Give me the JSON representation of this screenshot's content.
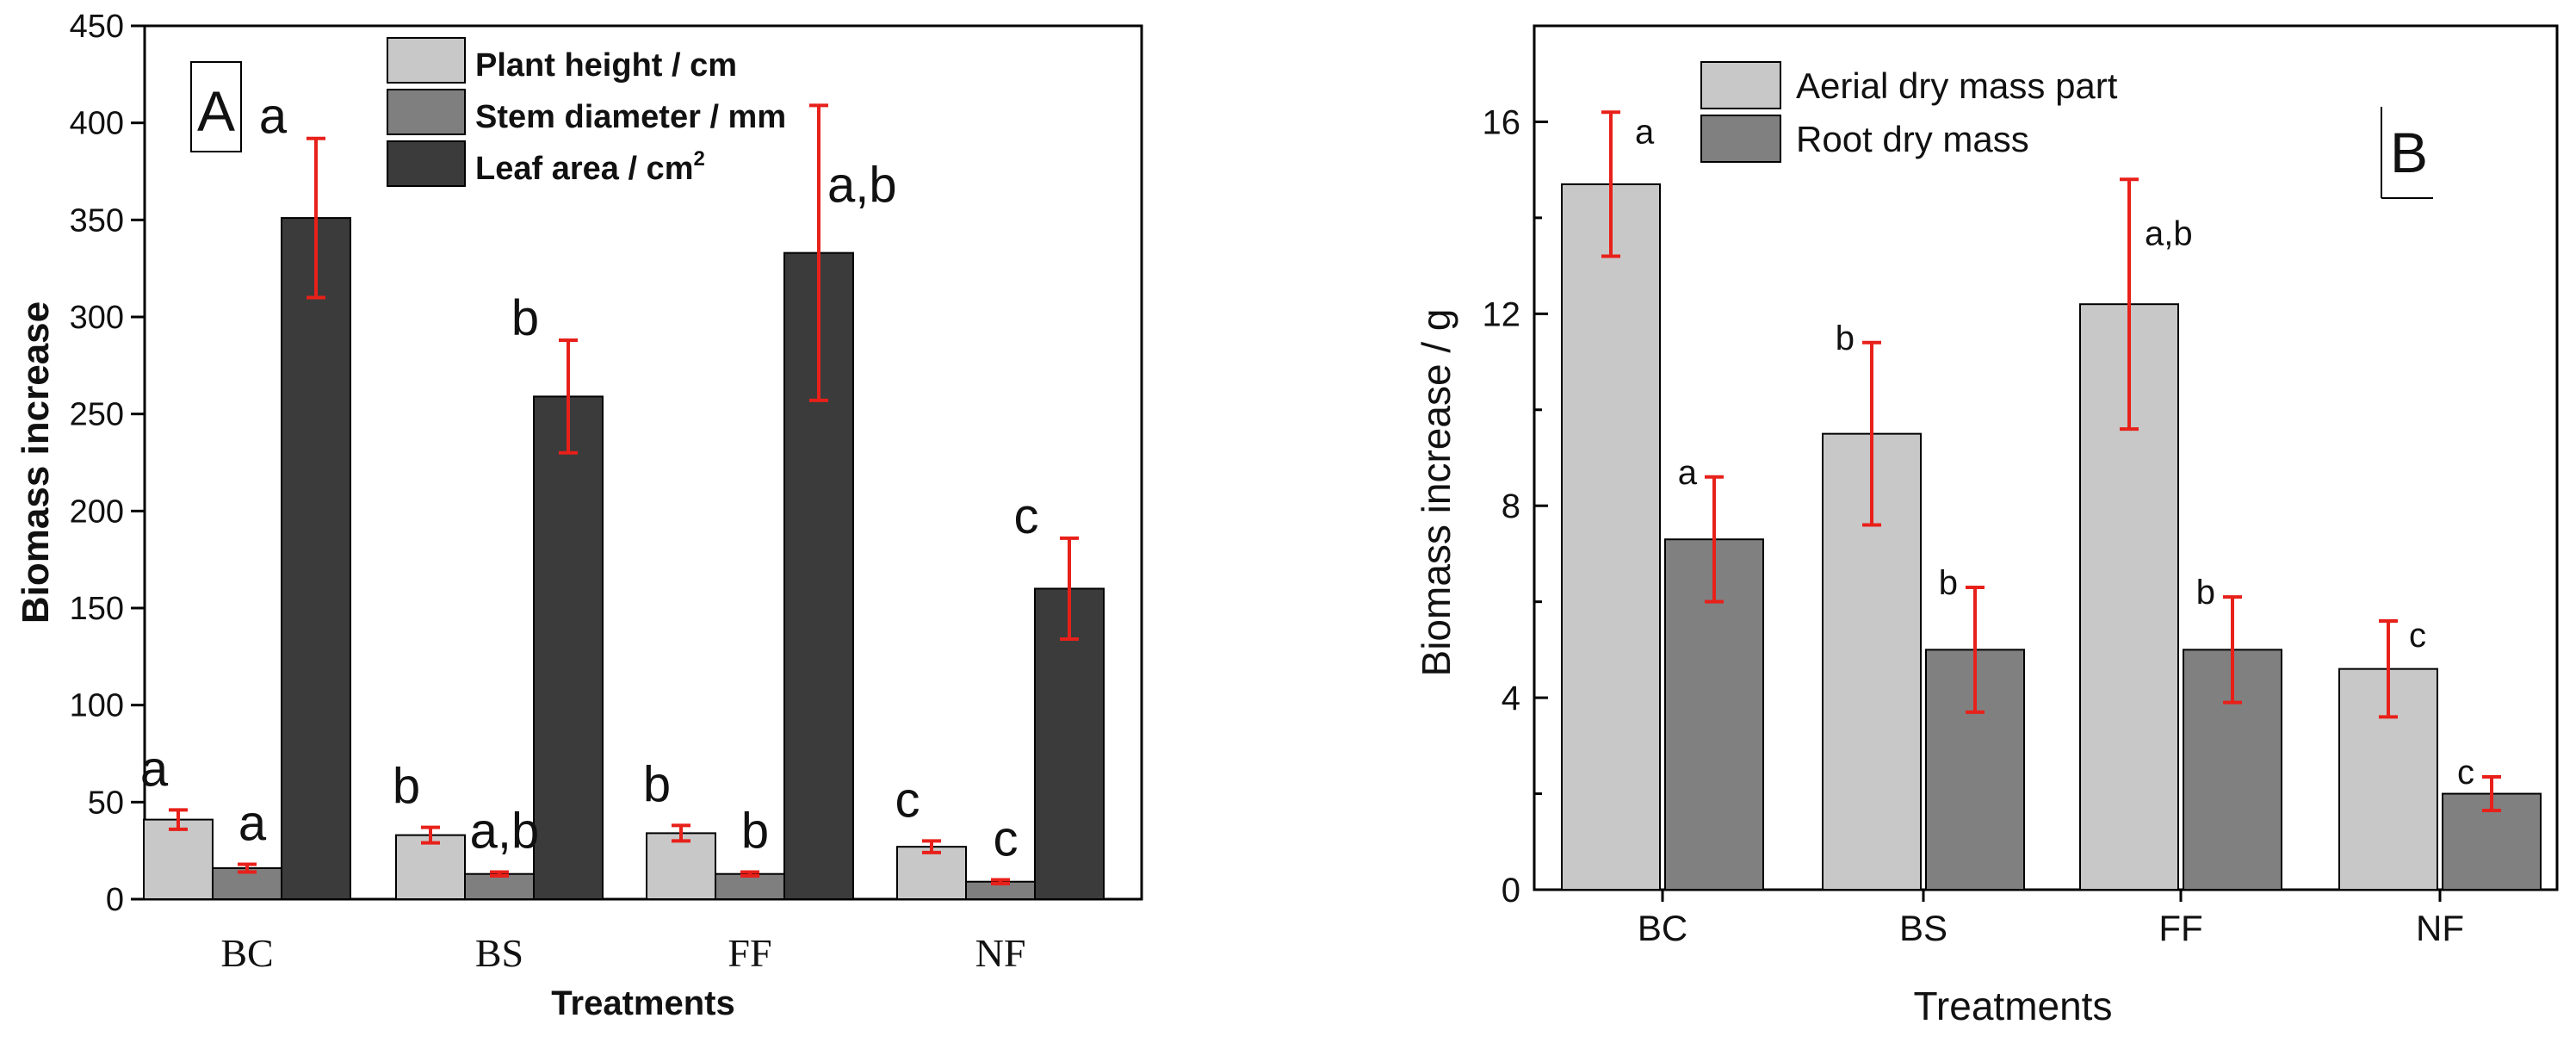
{
  "colors": {
    "background": "#ffffff",
    "axis": "#000000",
    "error_bar": "#e8201a",
    "light_gray": "#c8c8c8",
    "mid_gray": "#808080",
    "dark_gray": "#3c3c3c"
  },
  "chart_data": [
    {
      "type": "bar",
      "panel_label": "A",
      "title": "",
      "xlabel": "Treatments",
      "ylabel": "Biomass increase",
      "ylim": [
        0,
        450
      ],
      "yticks": [
        "0",
        "50",
        "100",
        "150",
        "200",
        "250",
        "300",
        "350",
        "400",
        "450"
      ],
      "categories": [
        "BC",
        "BS",
        "FF",
        "NF"
      ],
      "legend_position": "top-center",
      "series": [
        {
          "name": "Plant height / cm",
          "legend_label": "Plant height / cm",
          "color": "#c8c8c8",
          "values": [
            41,
            33,
            34,
            27
          ],
          "errors": [
            5,
            4,
            4,
            3
          ],
          "letters": [
            "a",
            "b",
            "b",
            "c"
          ]
        },
        {
          "name": "Stem diameter / mm",
          "legend_label": "Stem diameter / mm",
          "color": "#7f7f7f",
          "values": [
            16,
            13,
            13,
            9
          ],
          "errors": [
            2,
            1,
            1,
            1
          ],
          "letters": [
            "a",
            "a,b",
            "b",
            "c"
          ]
        },
        {
          "name": "Leaf area / cm2",
          "legend_label": "Leaf area / cm",
          "legend_superscript": "2",
          "color": "#3b3b3b",
          "values": [
            351,
            259,
            333,
            160
          ],
          "errors": [
            41,
            29,
            76,
            26
          ],
          "letters": [
            "a",
            "b",
            "a,b",
            "c"
          ]
        }
      ]
    },
    {
      "type": "bar",
      "panel_label": "B",
      "title": "",
      "xlabel": "Treatments",
      "ylabel": "Biomass increase / g",
      "ylim": [
        0,
        18
      ],
      "yticks": [
        "0",
        "4",
        "8",
        "12",
        "16"
      ],
      "yticks_values": [
        0,
        4,
        8,
        12,
        16
      ],
      "categories": [
        "BC",
        "BS",
        "FF",
        "NF"
      ],
      "legend_position": "top-left",
      "series": [
        {
          "name": "Aerial dry mass part",
          "color": "#c8c8c8",
          "values": [
            14.7,
            9.5,
            12.2,
            4.6
          ],
          "errors": [
            1.5,
            1.9,
            2.6,
            1.0
          ],
          "letters": [
            "a",
            "b",
            "a,b",
            "c"
          ]
        },
        {
          "name": "Root dry mass",
          "color": "#808080",
          "values": [
            7.3,
            5.0,
            5.0,
            2.0
          ],
          "errors": [
            1.3,
            1.3,
            1.1,
            0.35
          ],
          "letters": [
            "a",
            "b",
            "b",
            "c"
          ]
        }
      ]
    }
  ]
}
